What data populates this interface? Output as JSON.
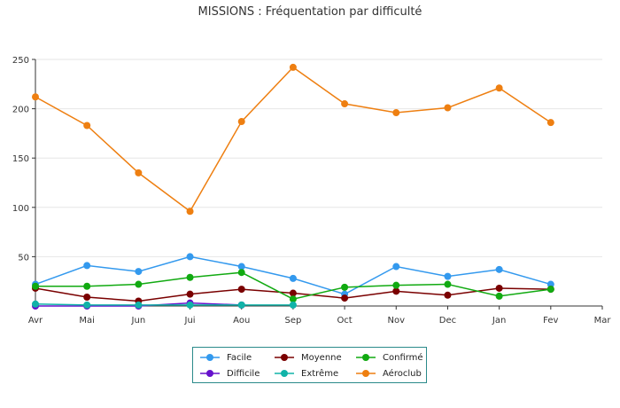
{
  "chart_data": {
    "type": "line",
    "title": "MISSIONS : Fréquentation par difficulté",
    "xlabel": "",
    "ylabel": "",
    "categories": [
      "Avr",
      "Mai",
      "Jun",
      "Jui",
      "Aou",
      "Sep",
      "Oct",
      "Nov",
      "Dec",
      "Jan",
      "Fev",
      "Mar"
    ],
    "ylim": [
      0,
      250
    ],
    "yticks": [
      50,
      100,
      150,
      200,
      250
    ],
    "grid": "horizontal",
    "legend_position": "bottom",
    "series": [
      {
        "name": "Facile",
        "color": "#3399ee",
        "values": [
          22,
          41,
          35,
          50,
          40,
          28,
          12,
          40,
          30,
          37,
          22,
          null
        ]
      },
      {
        "name": "Moyenne",
        "color": "#7a0000",
        "values": [
          18,
          9,
          5,
          12,
          17,
          13,
          8,
          15,
          11,
          18,
          17,
          null
        ]
      },
      {
        "name": "Confirmé",
        "color": "#11aa11",
        "values": [
          20,
          20,
          22,
          29,
          34,
          7,
          19,
          21,
          22,
          10,
          17,
          null
        ]
      },
      {
        "name": "Difficile",
        "color": "#6611cc",
        "values": [
          0,
          0,
          0,
          3,
          1,
          null,
          null,
          null,
          null,
          null,
          null,
          null
        ]
      },
      {
        "name": "Extrême",
        "color": "#11b3a8",
        "values": [
          2,
          1,
          1,
          1,
          1,
          1,
          null,
          null,
          null,
          null,
          null,
          null
        ]
      },
      {
        "name": "Aéroclub",
        "color": "#ee7f11",
        "values": [
          212,
          183,
          135,
          96,
          187,
          242,
          205,
          196,
          201,
          221,
          186,
          null
        ]
      }
    ]
  }
}
